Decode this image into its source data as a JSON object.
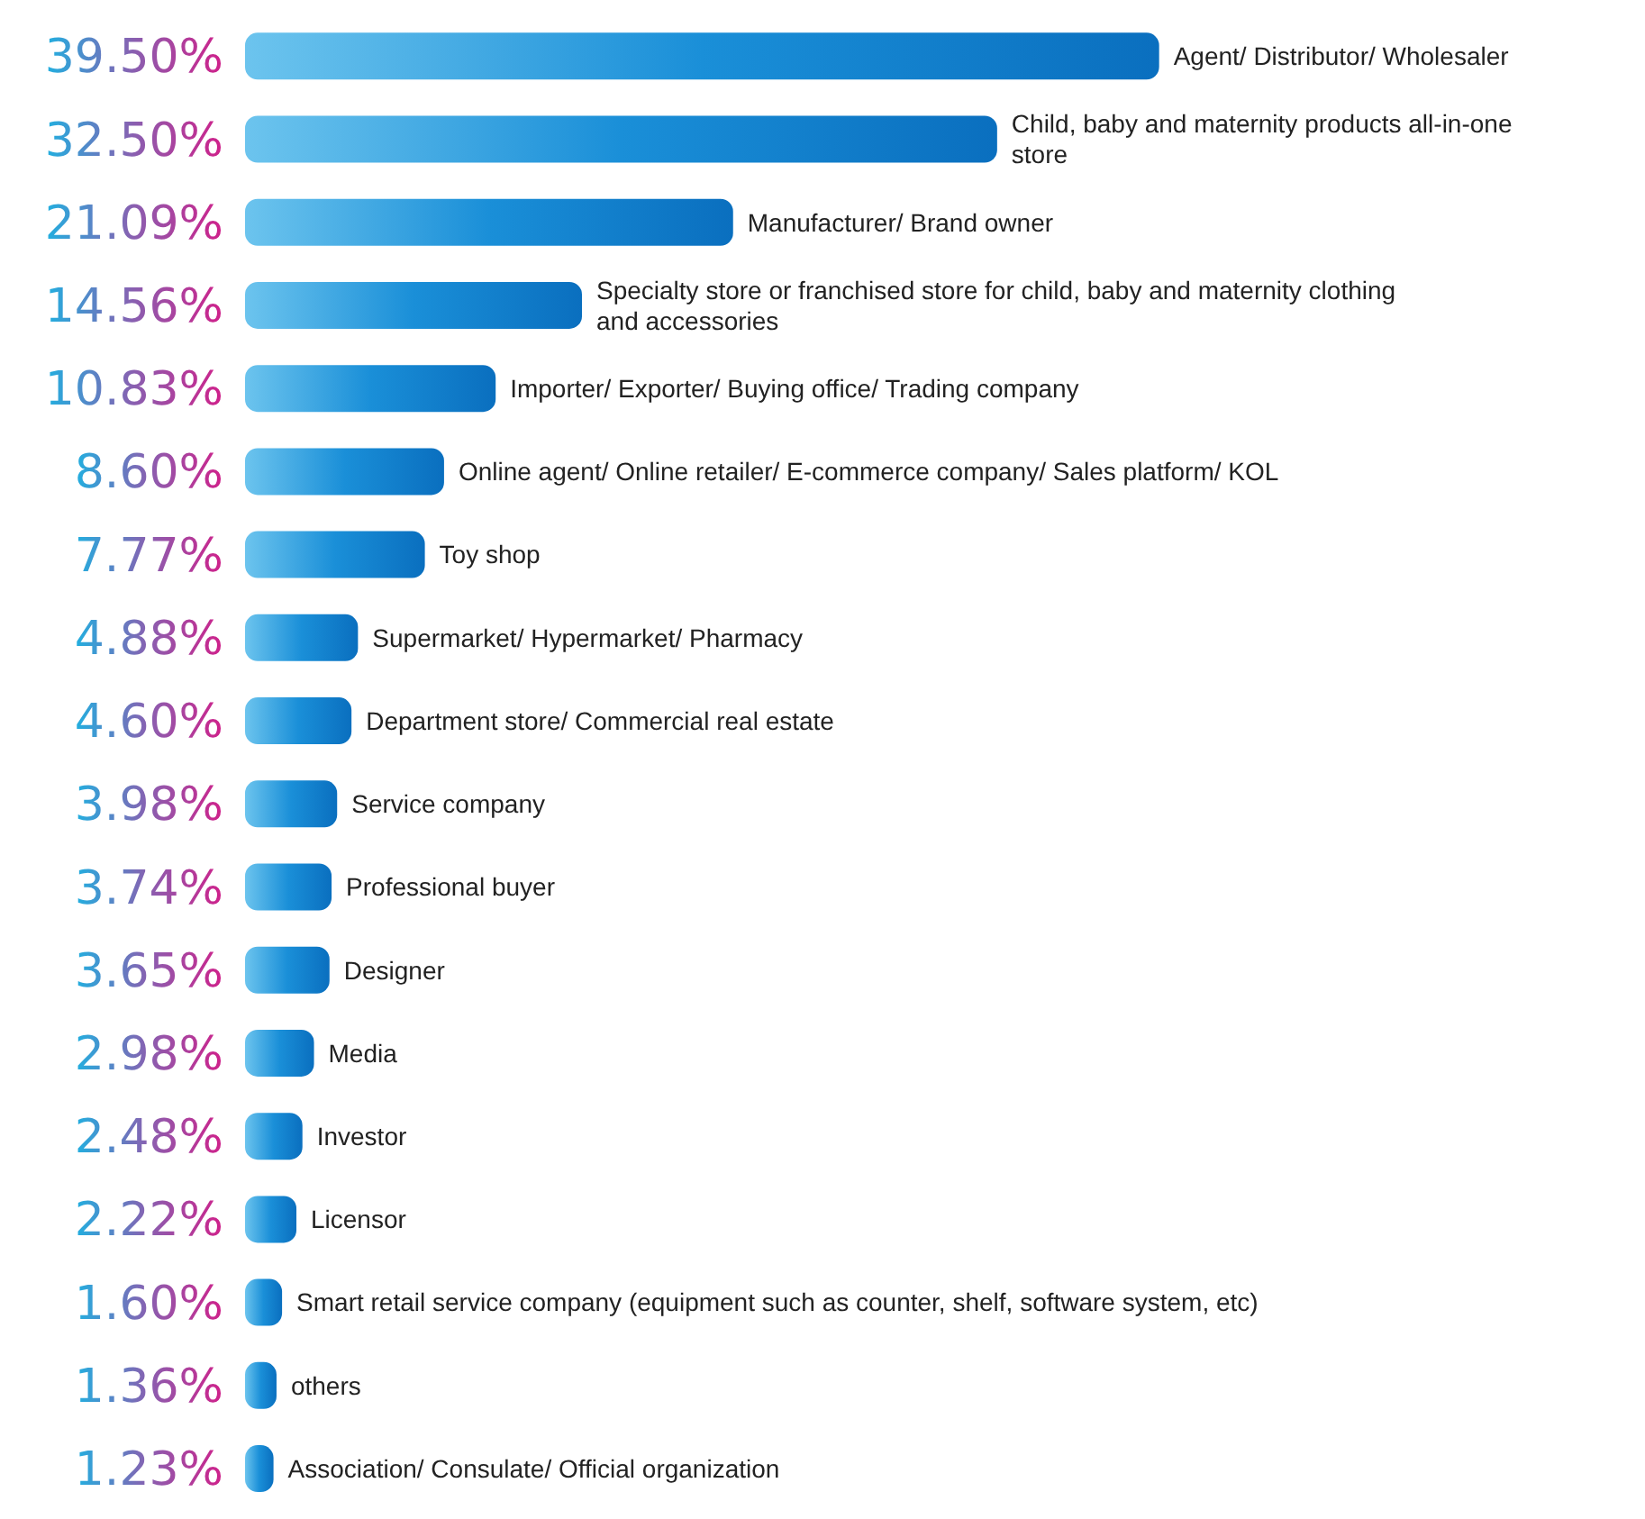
{
  "chart_data": {
    "type": "bar",
    "orientation": "horizontal",
    "categories": [
      "Agent/ Distributor/ Wholesaler",
      "Child, baby and maternity products all-in-one store",
      "Manufacturer/ Brand owner",
      "Specialty store or franchised store for child, baby and maternity clothing and accessories",
      "Importer/ Exporter/ Buying office/ Trading company",
      "Online agent/ Online retailer/ E-commerce company/ Sales platform/ KOL",
      "Toy shop",
      "Supermarket/ Hypermarket/ Pharmacy",
      "Department store/ Commercial real estate",
      "Service company",
      "Professional buyer",
      "Designer",
      "Media",
      "Investor",
      "Licensor",
      "Smart retail service company (equipment such as counter, shelf, software system, etc)",
      "others",
      "Association/ Consulate/ Official organization"
    ],
    "values": [
      39.5,
      32.5,
      21.09,
      14.56,
      10.83,
      8.6,
      7.77,
      4.88,
      4.6,
      3.98,
      3.74,
      3.65,
      2.98,
      2.48,
      2.22,
      1.6,
      1.36,
      1.23
    ],
    "value_labels": [
      "39.50%",
      "32.50%",
      "21.09%",
      "14.56%",
      "10.83%",
      "8.60%",
      "7.77%",
      "4.88%",
      "4.60%",
      "3.98%",
      "3.74%",
      "3.65%",
      "2.98%",
      "2.48%",
      "2.22%",
      "1.60%",
      "1.36%",
      "1.23%"
    ],
    "color": "#1a8fd8"
  }
}
